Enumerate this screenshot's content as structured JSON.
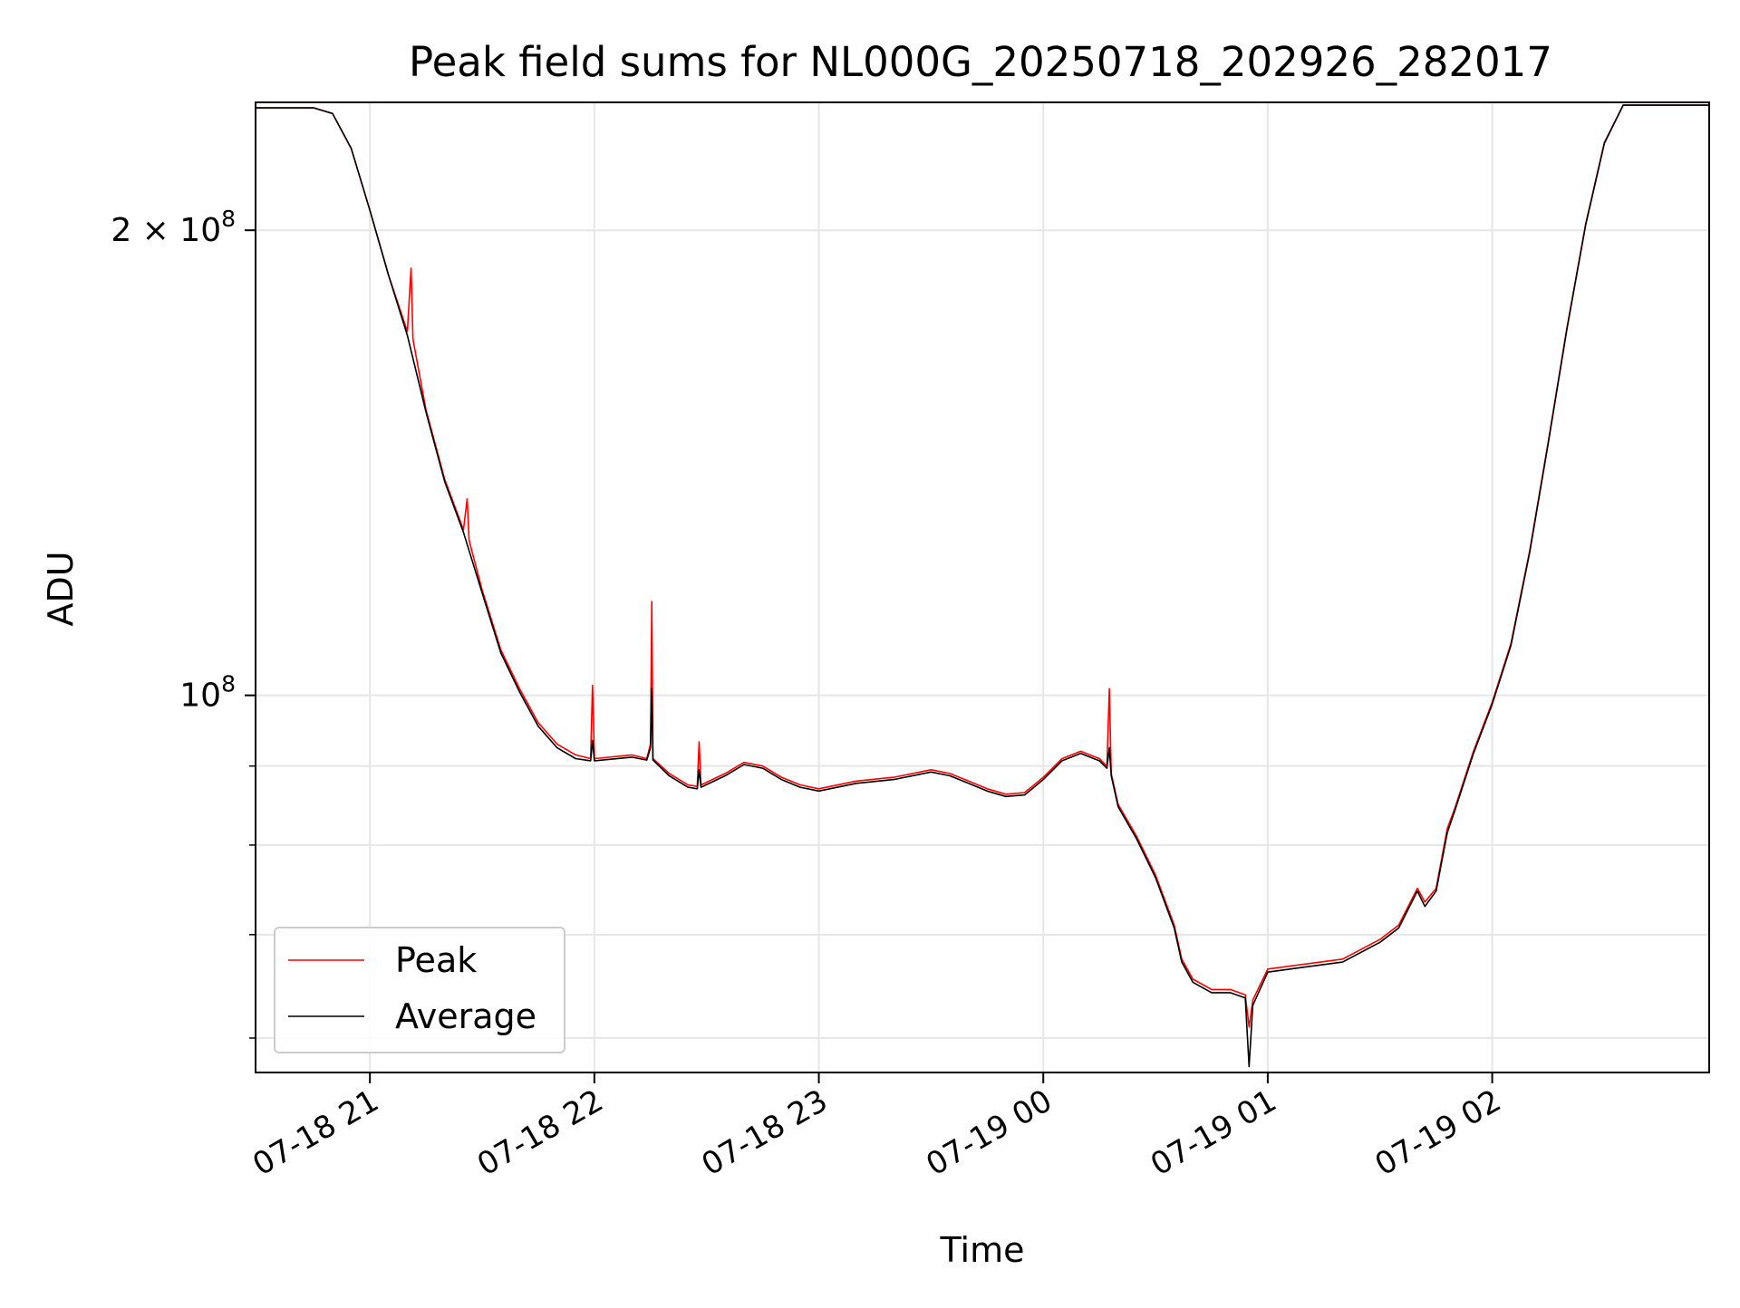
{
  "chart_data": {
    "type": "line",
    "title": "Peak field sums for NL000G_20250718_202926_282017",
    "xlabel": "Time",
    "ylabel": "ADU",
    "yscale": "log",
    "ylim": [
      57000000,
      242000000
    ],
    "xlim": [
      "2025-07-18 20:29:26",
      "2025-07-19 02:58:00"
    ],
    "grid": true,
    "legend": "lower left",
    "x_ticks": [
      {
        "t": "2025-07-18 21:00",
        "label": "07-18 21"
      },
      {
        "t": "2025-07-18 22:00",
        "label": "07-18 22"
      },
      {
        "t": "2025-07-18 23:00",
        "label": "07-18 23"
      },
      {
        "t": "2025-07-19 00:00",
        "label": "07-19 00"
      },
      {
        "t": "2025-07-19 01:00",
        "label": "07-19 01"
      },
      {
        "t": "2025-07-19 02:00",
        "label": "07-19 02"
      }
    ],
    "y_ticks": [
      {
        "value": 200000000,
        "base": "2 × 10",
        "exp": "8"
      },
      {
        "value": 100000000,
        "base": "10",
        "exp": "8"
      }
    ],
    "y_minor_ticks": [
      60000000,
      70000000,
      80000000,
      90000000
    ],
    "series": [
      {
        "name": "Peak",
        "color": "#ff0000",
        "points": [
          [
            "2025-07-18 20:29:26",
            240000000
          ],
          [
            "2025-07-18 20:45:00",
            240000000
          ],
          [
            "2025-07-18 20:50:00",
            238000000
          ],
          [
            "2025-07-18 20:55:00",
            226000000
          ],
          [
            "2025-07-18 21:00:00",
            206000000
          ],
          [
            "2025-07-18 21:05:00",
            187000000
          ],
          [
            "2025-07-18 21:10:00",
            172000000
          ],
          [
            "2025-07-18 21:11:00",
            189000000
          ],
          [
            "2025-07-18 21:11:30",
            170000000
          ],
          [
            "2025-07-18 21:15:00",
            153000000
          ],
          [
            "2025-07-18 21:20:00",
            138000000
          ],
          [
            "2025-07-18 21:25:00",
            128000000
          ],
          [
            "2025-07-18 21:26:00",
            134000000
          ],
          [
            "2025-07-18 21:26:30",
            126000000
          ],
          [
            "2025-07-18 21:30:00",
            117000000
          ],
          [
            "2025-07-18 21:35:00",
            107000000
          ],
          [
            "2025-07-18 21:40:00",
            101000000
          ],
          [
            "2025-07-18 21:45:00",
            96000000
          ],
          [
            "2025-07-18 21:50:00",
            93000000
          ],
          [
            "2025-07-18 21:55:00",
            91500000
          ],
          [
            "2025-07-18 21:59:00",
            91000000
          ],
          [
            "2025-07-18 21:59:30",
            101500000
          ],
          [
            "2025-07-18 22:00:00",
            91000000
          ],
          [
            "2025-07-18 22:10:00",
            91500000
          ],
          [
            "2025-07-18 22:14:00",
            91000000
          ],
          [
            "2025-07-18 22:15:00",
            93000000
          ],
          [
            "2025-07-18 22:15:20",
            115000000
          ],
          [
            "2025-07-18 22:15:40",
            91000000
          ],
          [
            "2025-07-18 22:20:00",
            89000000
          ],
          [
            "2025-07-18 22:25:00",
            87500000
          ],
          [
            "2025-07-18 22:27:30",
            87300000
          ],
          [
            "2025-07-18 22:28:00",
            93300000
          ],
          [
            "2025-07-18 22:28:30",
            87500000
          ],
          [
            "2025-07-18 22:35:00",
            89000000
          ],
          [
            "2025-07-18 22:40:00",
            90500000
          ],
          [
            "2025-07-18 22:45:00",
            90000000
          ],
          [
            "2025-07-18 22:50:00",
            88500000
          ],
          [
            "2025-07-18 22:55:00",
            87500000
          ],
          [
            "2025-07-18 23:00:00",
            87000000
          ],
          [
            "2025-07-18 23:10:00",
            88000000
          ],
          [
            "2025-07-18 23:20:00",
            88500000
          ],
          [
            "2025-07-18 23:30:00",
            89500000
          ],
          [
            "2025-07-18 23:35:00",
            89000000
          ],
          [
            "2025-07-18 23:40:00",
            88000000
          ],
          [
            "2025-07-18 23:45:00",
            87000000
          ],
          [
            "2025-07-18 23:50:00",
            86300000
          ],
          [
            "2025-07-18 23:55:00",
            86500000
          ],
          [
            "2025-07-19 00:00:00",
            88500000
          ],
          [
            "2025-07-19 00:05:00",
            91000000
          ],
          [
            "2025-07-19 00:10:00",
            92000000
          ],
          [
            "2025-07-19 00:15:00",
            91000000
          ],
          [
            "2025-07-19 00:17:00",
            90000000
          ],
          [
            "2025-07-19 00:17:40",
            101000000
          ],
          [
            "2025-07-19 00:18:10",
            89000000
          ],
          [
            "2025-07-19 00:20:00",
            85000000
          ],
          [
            "2025-07-19 00:25:00",
            81000000
          ],
          [
            "2025-07-19 00:30:00",
            76500000
          ],
          [
            "2025-07-19 00:35:00",
            71000000
          ],
          [
            "2025-07-19 00:37:00",
            67500000
          ],
          [
            "2025-07-19 00:40:00",
            65500000
          ],
          [
            "2025-07-19 00:45:00",
            64500000
          ],
          [
            "2025-07-19 00:50:00",
            64500000
          ],
          [
            "2025-07-19 00:54:00",
            64000000
          ],
          [
            "2025-07-19 00:55:00",
            61000000
          ],
          [
            "2025-07-19 00:56:00",
            63500000
          ],
          [
            "2025-07-19 01:00:00",
            66500000
          ],
          [
            "2025-07-19 01:10:00",
            67000000
          ],
          [
            "2025-07-19 01:20:00",
            67500000
          ],
          [
            "2025-07-19 01:30:00",
            69500000
          ],
          [
            "2025-07-19 01:35:00",
            71000000
          ],
          [
            "2025-07-19 01:40:00",
            75000000
          ],
          [
            "2025-07-19 01:42:00",
            73500000
          ],
          [
            "2025-07-19 01:45:00",
            75000000
          ],
          [
            "2025-07-19 01:48:00",
            82000000
          ],
          [
            "2025-07-19 01:50:00",
            84500000
          ],
          [
            "2025-07-19 01:55:00",
            92000000
          ],
          [
            "2025-07-19 02:00:00",
            99000000
          ],
          [
            "2025-07-19 02:05:00",
            108000000
          ],
          [
            "2025-07-19 02:10:00",
            124000000
          ],
          [
            "2025-07-19 02:15:00",
            146000000
          ],
          [
            "2025-07-19 02:20:00",
            173000000
          ],
          [
            "2025-07-19 02:25:00",
            202000000
          ],
          [
            "2025-07-19 02:30:00",
            228000000
          ],
          [
            "2025-07-19 02:35:00",
            241000000
          ],
          [
            "2025-07-19 02:58:00",
            241000000
          ]
        ]
      },
      {
        "name": "Average",
        "color": "#000000",
        "points": [
          [
            "2025-07-18 20:29:26",
            240000000
          ],
          [
            "2025-07-18 20:45:00",
            240000000
          ],
          [
            "2025-07-18 20:50:00",
            238000000
          ],
          [
            "2025-07-18 20:55:00",
            226000000
          ],
          [
            "2025-07-18 21:00:00",
            206000000
          ],
          [
            "2025-07-18 21:05:00",
            187000000
          ],
          [
            "2025-07-18 21:10:00",
            171000000
          ],
          [
            "2025-07-18 21:15:00",
            152500000
          ],
          [
            "2025-07-18 21:20:00",
            137500000
          ],
          [
            "2025-07-18 21:25:00",
            127500000
          ],
          [
            "2025-07-18 21:30:00",
            116500000
          ],
          [
            "2025-07-18 21:35:00",
            106500000
          ],
          [
            "2025-07-18 21:40:00",
            100500000
          ],
          [
            "2025-07-18 21:45:00",
            95500000
          ],
          [
            "2025-07-18 21:50:00",
            92500000
          ],
          [
            "2025-07-18 21:55:00",
            91000000
          ],
          [
            "2025-07-18 21:59:00",
            90700000
          ],
          [
            "2025-07-18 21:59:30",
            93500000
          ],
          [
            "2025-07-18 22:00:00",
            90700000
          ],
          [
            "2025-07-18 22:10:00",
            91200000
          ],
          [
            "2025-07-18 22:14:00",
            90800000
          ],
          [
            "2025-07-18 22:15:00",
            92500000
          ],
          [
            "2025-07-18 22:15:20",
            101000000
          ],
          [
            "2025-07-18 22:15:40",
            90800000
          ],
          [
            "2025-07-18 22:20:00",
            88700000
          ],
          [
            "2025-07-18 22:25:00",
            87200000
          ],
          [
            "2025-07-18 22:27:30",
            87000000
          ],
          [
            "2025-07-18 22:28:00",
            89500000
          ],
          [
            "2025-07-18 22:28:30",
            87200000
          ],
          [
            "2025-07-18 22:35:00",
            88700000
          ],
          [
            "2025-07-18 22:40:00",
            90200000
          ],
          [
            "2025-07-18 22:45:00",
            89700000
          ],
          [
            "2025-07-18 22:50:00",
            88200000
          ],
          [
            "2025-07-18 22:55:00",
            87200000
          ],
          [
            "2025-07-18 23:00:00",
            86700000
          ],
          [
            "2025-07-18 23:10:00",
            87700000
          ],
          [
            "2025-07-18 23:20:00",
            88200000
          ],
          [
            "2025-07-18 23:30:00",
            89200000
          ],
          [
            "2025-07-18 23:35:00",
            88700000
          ],
          [
            "2025-07-18 23:40:00",
            87700000
          ],
          [
            "2025-07-18 23:45:00",
            86700000
          ],
          [
            "2025-07-18 23:50:00",
            86000000
          ],
          [
            "2025-07-18 23:55:00",
            86200000
          ],
          [
            "2025-07-19 00:00:00",
            88200000
          ],
          [
            "2025-07-19 00:05:00",
            90700000
          ],
          [
            "2025-07-19 00:10:00",
            91700000
          ],
          [
            "2025-07-19 00:15:00",
            90700000
          ],
          [
            "2025-07-19 00:17:00",
            89700000
          ],
          [
            "2025-07-19 00:17:40",
            92500000
          ],
          [
            "2025-07-19 00:18:10",
            88700000
          ],
          [
            "2025-07-19 00:20:00",
            84700000
          ],
          [
            "2025-07-19 00:25:00",
            80700000
          ],
          [
            "2025-07-19 00:30:00",
            76200000
          ],
          [
            "2025-07-19 00:35:00",
            70700000
          ],
          [
            "2025-07-19 00:37:00",
            67200000
          ],
          [
            "2025-07-19 00:40:00",
            65200000
          ],
          [
            "2025-07-19 00:45:00",
            64200000
          ],
          [
            "2025-07-19 00:50:00",
            64200000
          ],
          [
            "2025-07-19 00:54:00",
            63700000
          ],
          [
            "2025-07-19 00:55:00",
            57500000
          ],
          [
            "2025-07-19 00:56:00",
            63000000
          ],
          [
            "2025-07-19 01:00:00",
            66200000
          ],
          [
            "2025-07-19 01:10:00",
            66700000
          ],
          [
            "2025-07-19 01:20:00",
            67200000
          ],
          [
            "2025-07-19 01:30:00",
            69200000
          ],
          [
            "2025-07-19 01:35:00",
            70700000
          ],
          [
            "2025-07-19 01:40:00",
            74700000
          ],
          [
            "2025-07-19 01:42:00",
            73000000
          ],
          [
            "2025-07-19 01:45:00",
            74700000
          ],
          [
            "2025-07-19 01:48:00",
            81500000
          ],
          [
            "2025-07-19 01:50:00",
            84200000
          ],
          [
            "2025-07-19 01:55:00",
            91700000
          ],
          [
            "2025-07-19 02:00:00",
            98700000
          ],
          [
            "2025-07-19 02:05:00",
            107700000
          ],
          [
            "2025-07-19 02:10:00",
            123700000
          ],
          [
            "2025-07-19 02:15:00",
            145700000
          ],
          [
            "2025-07-19 02:20:00",
            172700000
          ],
          [
            "2025-07-19 02:25:00",
            201700000
          ],
          [
            "2025-07-19 02:30:00",
            227700000
          ],
          [
            "2025-07-19 02:35:00",
            241000000
          ],
          [
            "2025-07-19 02:58:00",
            241000000
          ]
        ]
      }
    ]
  }
}
